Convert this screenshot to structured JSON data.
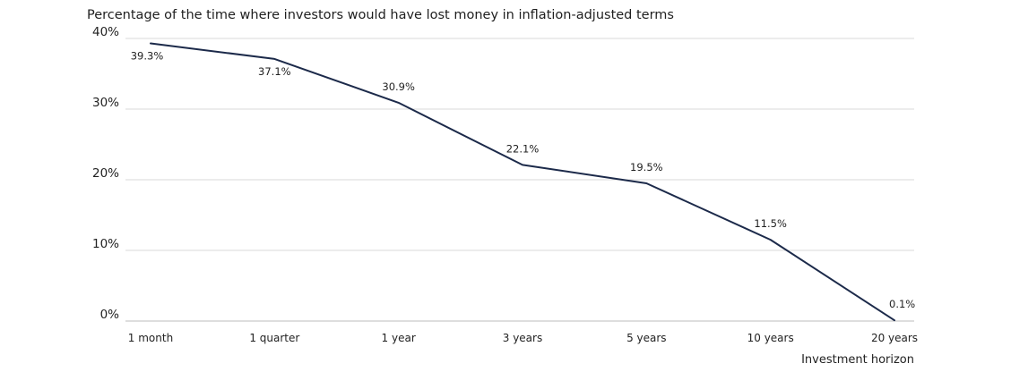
{
  "chart_data": {
    "type": "line",
    "title": "Percentage of the time where investors would have lost money in inflation-adjusted terms",
    "xlabel": "Investment horizon",
    "ylabel": "",
    "categories": [
      "1 month",
      "1 quarter",
      "1 year",
      "3 years",
      "5 years",
      "10 years",
      "20 years"
    ],
    "series": [
      {
        "values": [
          39.3,
          37.1,
          30.9,
          22.1,
          19.5,
          11.5,
          0.1
        ],
        "labels": [
          "39.3%",
          "37.1%",
          "30.9%",
          "22.1%",
          "19.5%",
          "11.5%",
          "0.1%"
        ]
      }
    ],
    "ylim": [
      0,
      40
    ],
    "yticks": [
      0,
      10,
      20,
      30,
      40
    ],
    "ytick_labels": [
      "0%",
      "10%",
      "20%",
      "30%",
      "40%"
    ],
    "grid": true,
    "line_color": "#1c2a4a",
    "grid_color": "#dadada"
  }
}
